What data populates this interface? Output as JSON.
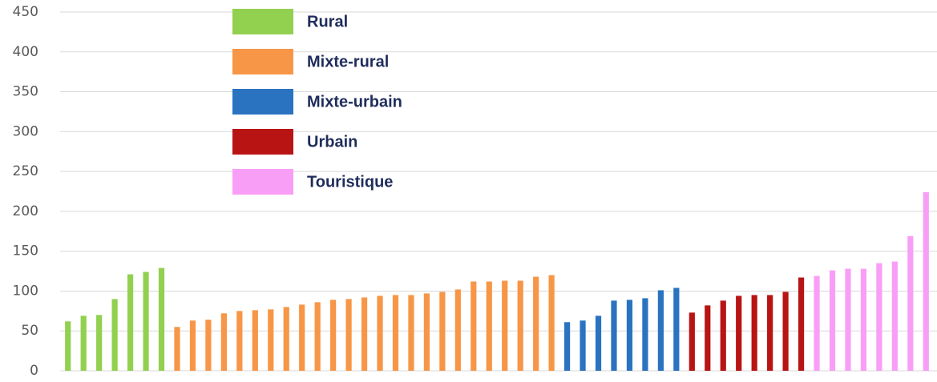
{
  "chart_data": {
    "type": "bar",
    "categories": [
      null,
      null,
      null,
      null,
      null,
      null,
      null,
      null,
      null,
      null,
      null,
      null,
      null,
      null,
      null,
      null,
      null,
      null,
      null,
      null,
      null,
      null,
      null,
      null,
      null,
      null,
      null,
      null,
      null,
      null,
      null,
      null,
      null,
      null,
      null,
      null,
      null,
      null,
      null,
      null,
      null,
      null,
      null,
      null,
      null,
      null,
      null,
      null,
      null,
      null,
      null,
      null,
      null,
      null,
      null,
      null
    ],
    "series": [
      {
        "name": "Rural",
        "color": "#92d050",
        "values": [
          62,
          69,
          70,
          90,
          121,
          124,
          129,
          null,
          null,
          null,
          null,
          null,
          null,
          null,
          null,
          null,
          null,
          null,
          null,
          null,
          null,
          null,
          null,
          null,
          null,
          null,
          null,
          null,
          null,
          null,
          null,
          null,
          null,
          null,
          null,
          null,
          null,
          null,
          null,
          null,
          null,
          null,
          null,
          null,
          null,
          null,
          null,
          null,
          null,
          null,
          null,
          null,
          null,
          null,
          null,
          null
        ]
      },
      {
        "name": "Mixte-rural",
        "color": "#f79646",
        "values": [
          null,
          null,
          null,
          null,
          null,
          null,
          null,
          55,
          63,
          64,
          72,
          75,
          76,
          77,
          80,
          83,
          86,
          89,
          90,
          92,
          94,
          95,
          95,
          97,
          99,
          102,
          112,
          112,
          113,
          113,
          118,
          120,
          null,
          null,
          null,
          null,
          null,
          null,
          null,
          null,
          null,
          null,
          null,
          null,
          null,
          null,
          null,
          null,
          null,
          null,
          null,
          null,
          null,
          null,
          null,
          null
        ]
      },
      {
        "name": "Mixte-urbain",
        "color": "#2a73c0",
        "values": [
          null,
          null,
          null,
          null,
          null,
          null,
          null,
          null,
          null,
          null,
          null,
          null,
          null,
          null,
          null,
          null,
          null,
          null,
          null,
          null,
          null,
          null,
          null,
          null,
          null,
          null,
          null,
          null,
          null,
          null,
          null,
          null,
          61,
          63,
          69,
          88,
          89,
          91,
          101,
          104,
          null,
          null,
          null,
          null,
          null,
          null,
          null,
          null,
          null,
          null,
          null,
          null,
          null,
          null,
          null,
          null
        ]
      },
      {
        "name": "Urbain",
        "color": "#b81414",
        "values": [
          null,
          null,
          null,
          null,
          null,
          null,
          null,
          null,
          null,
          null,
          null,
          null,
          null,
          null,
          null,
          null,
          null,
          null,
          null,
          null,
          null,
          null,
          null,
          null,
          null,
          null,
          null,
          null,
          null,
          null,
          null,
          null,
          null,
          null,
          null,
          null,
          null,
          null,
          null,
          null,
          73,
          82,
          88,
          94,
          95,
          95,
          99,
          117,
          null,
          null,
          null,
          null,
          null,
          null,
          null,
          null
        ]
      },
      {
        "name": "Touristique",
        "color": "#f99ef7",
        "values": [
          null,
          null,
          null,
          null,
          null,
          null,
          null,
          null,
          null,
          null,
          null,
          null,
          null,
          null,
          null,
          null,
          null,
          null,
          null,
          null,
          null,
          null,
          null,
          null,
          null,
          null,
          null,
          null,
          null,
          null,
          null,
          null,
          null,
          null,
          null,
          null,
          null,
          null,
          null,
          null,
          null,
          null,
          null,
          null,
          null,
          null,
          null,
          null,
          119,
          126,
          128,
          128,
          135,
          137,
          169,
          224
        ]
      }
    ],
    "ylim": [
      0,
      450
    ],
    "yticks": [
      0,
      50,
      100,
      150,
      200,
      250,
      300,
      350,
      400,
      450
    ],
    "grid": true
  }
}
